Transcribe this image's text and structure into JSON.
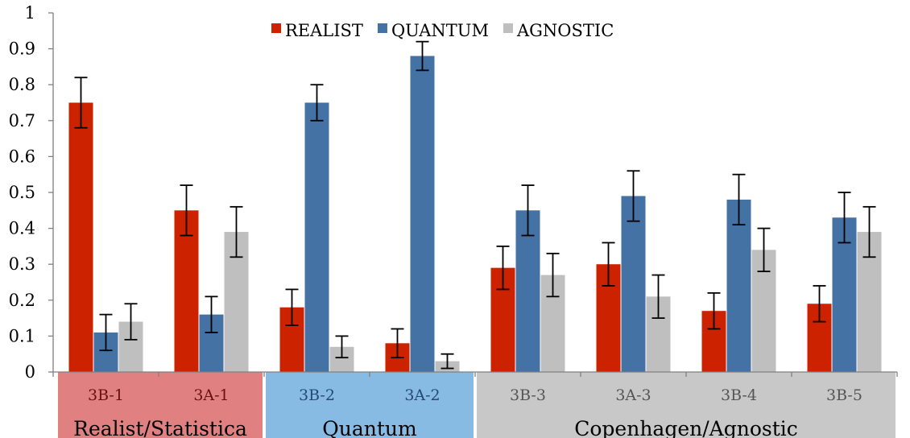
{
  "chart_data": {
    "type": "bar",
    "categories": [
      "3B-1",
      "3A-1",
      "3B-2",
      "3A-2",
      "3B-3",
      "3A-3",
      "3B-4",
      "3B-5"
    ],
    "series": [
      {
        "name": "REALIST",
        "color": "#cc2200",
        "values": [
          0.75,
          0.45,
          0.18,
          0.08,
          0.29,
          0.3,
          0.17,
          0.19
        ],
        "errors": [
          0.07,
          0.07,
          0.05,
          0.04,
          0.06,
          0.06,
          0.05,
          0.05
        ]
      },
      {
        "name": "QUANTUM",
        "color": "#4472a4",
        "values": [
          0.11,
          0.16,
          0.75,
          0.88,
          0.45,
          0.49,
          0.48,
          0.43
        ],
        "errors": [
          0.05,
          0.05,
          0.05,
          0.04,
          0.07,
          0.07,
          0.07,
          0.07
        ]
      },
      {
        "name": "AGNOSTIC",
        "color": "#bfbfbf",
        "values": [
          0.14,
          0.39,
          0.07,
          0.03,
          0.27,
          0.21,
          0.34,
          0.39
        ],
        "errors": [
          0.05,
          0.07,
          0.03,
          0.02,
          0.06,
          0.06,
          0.06,
          0.07
        ]
      }
    ],
    "ylim": [
      0,
      1
    ],
    "yticks": [
      "0",
      "0.1",
      "0.2",
      "0.3",
      "0.4",
      "0.5",
      "0.6",
      "0.7",
      "0.8",
      "0.9",
      "1"
    ],
    "grid": false,
    "legend_position": "top-center",
    "groups": [
      {
        "label": "Realist/Statistica",
        "start": 0,
        "end": 1,
        "bg": "#e08080",
        "text_color": "#6a1010"
      },
      {
        "label": "Quantum",
        "start": 2,
        "end": 3,
        "bg": "#87bbe3",
        "text_color": "#244a74"
      },
      {
        "label": "Copenhagen/Agnostic",
        "start": 4,
        "end": 7,
        "bg": "#c8c8c8",
        "text_color": "#555555"
      }
    ]
  }
}
